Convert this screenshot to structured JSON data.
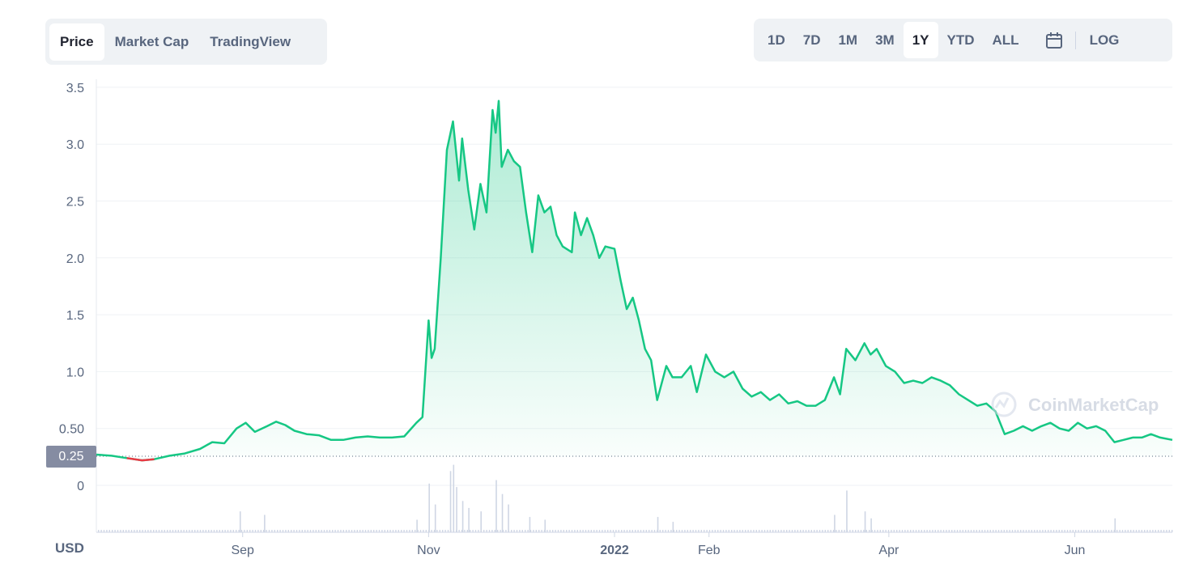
{
  "tabs": [
    "Price",
    "Market Cap",
    "TradingView"
  ],
  "ranges": [
    "1D",
    "7D",
    "1M",
    "3M",
    "1Y",
    "YTD",
    "ALL"
  ],
  "log_label": "LOG",
  "currency_label": "USD",
  "watermark": "CoinMarketCap",
  "current_price_label": "0.25",
  "colors": {
    "up": "#16c784",
    "down": "#ea3943"
  },
  "chart_data": {
    "type": "area",
    "y_ticks": [
      "3.5",
      "3.0",
      "2.5",
      "2.0",
      "1.5",
      "1.0",
      "0.50",
      "0"
    ],
    "y_tick_values": [
      3.5,
      3.0,
      2.5,
      2.0,
      1.5,
      1.0,
      0.5,
      0
    ],
    "ylim": [
      0,
      3.5
    ],
    "baseline": 0.25,
    "x_ticks": [
      {
        "label": "Sep",
        "date": "2021-09-01"
      },
      {
        "label": "Nov",
        "date": "2021-11-01"
      },
      {
        "label": "2022",
        "date": "2022-01-01"
      },
      {
        "label": "Feb",
        "date": "2022-02-01"
      },
      {
        "label": "Apr",
        "date": "2022-04-01"
      },
      {
        "label": "Jun",
        "date": "2022-06-01"
      }
    ],
    "series": [
      {
        "values": [
          [
            "2021-07-15",
            0.27
          ],
          [
            "2021-07-20",
            0.26
          ],
          [
            "2021-07-25",
            0.24
          ],
          [
            "2021-07-30",
            0.22
          ],
          [
            "2021-08-03",
            0.23
          ],
          [
            "2021-08-08",
            0.26
          ],
          [
            "2021-08-13",
            0.28
          ],
          [
            "2021-08-18",
            0.32
          ],
          [
            "2021-08-22",
            0.38
          ],
          [
            "2021-08-26",
            0.37
          ],
          [
            "2021-08-30",
            0.5
          ],
          [
            "2021-09-02",
            0.55
          ],
          [
            "2021-09-05",
            0.47
          ],
          [
            "2021-09-09",
            0.52
          ],
          [
            "2021-09-12",
            0.56
          ],
          [
            "2021-09-15",
            0.53
          ],
          [
            "2021-09-18",
            0.48
          ],
          [
            "2021-09-22",
            0.45
          ],
          [
            "2021-09-26",
            0.44
          ],
          [
            "2021-09-30",
            0.4
          ],
          [
            "2021-10-04",
            0.4
          ],
          [
            "2021-10-08",
            0.42
          ],
          [
            "2021-10-12",
            0.43
          ],
          [
            "2021-10-16",
            0.42
          ],
          [
            "2021-10-20",
            0.42
          ],
          [
            "2021-10-24",
            0.43
          ],
          [
            "2021-10-28",
            0.55
          ],
          [
            "2021-10-30",
            0.6
          ],
          [
            "2021-11-01",
            1.45
          ],
          [
            "2021-11-02",
            1.12
          ],
          [
            "2021-11-03",
            1.2
          ],
          [
            "2021-11-05",
            2.0
          ],
          [
            "2021-11-07",
            2.95
          ],
          [
            "2021-11-09",
            3.2
          ],
          [
            "2021-11-11",
            2.68
          ],
          [
            "2021-11-12",
            3.05
          ],
          [
            "2021-11-14",
            2.6
          ],
          [
            "2021-11-16",
            2.25
          ],
          [
            "2021-11-18",
            2.65
          ],
          [
            "2021-11-20",
            2.4
          ],
          [
            "2021-11-22",
            3.3
          ],
          [
            "2021-11-23",
            3.1
          ],
          [
            "2021-11-24",
            3.38
          ],
          [
            "2021-11-25",
            2.8
          ],
          [
            "2021-11-27",
            2.95
          ],
          [
            "2021-11-29",
            2.85
          ],
          [
            "2021-12-01",
            2.8
          ],
          [
            "2021-12-03",
            2.4
          ],
          [
            "2021-12-05",
            2.05
          ],
          [
            "2021-12-07",
            2.55
          ],
          [
            "2021-12-09",
            2.4
          ],
          [
            "2021-12-11",
            2.45
          ],
          [
            "2021-12-13",
            2.2
          ],
          [
            "2021-12-15",
            2.1
          ],
          [
            "2021-12-18",
            2.05
          ],
          [
            "2021-12-19",
            2.4
          ],
          [
            "2021-12-21",
            2.2
          ],
          [
            "2021-12-23",
            2.35
          ],
          [
            "2021-12-25",
            2.2
          ],
          [
            "2021-12-27",
            2.0
          ],
          [
            "2021-12-29",
            2.1
          ],
          [
            "2022-01-01",
            2.08
          ],
          [
            "2022-01-03",
            1.8
          ],
          [
            "2022-01-05",
            1.55
          ],
          [
            "2022-01-07",
            1.65
          ],
          [
            "2022-01-09",
            1.45
          ],
          [
            "2022-01-11",
            1.2
          ],
          [
            "2022-01-13",
            1.1
          ],
          [
            "2022-01-15",
            0.75
          ],
          [
            "2022-01-18",
            1.05
          ],
          [
            "2022-01-20",
            0.95
          ],
          [
            "2022-01-23",
            0.95
          ],
          [
            "2022-01-26",
            1.05
          ],
          [
            "2022-01-28",
            0.82
          ],
          [
            "2022-01-31",
            1.15
          ],
          [
            "2022-02-03",
            1.0
          ],
          [
            "2022-02-06",
            0.95
          ],
          [
            "2022-02-09",
            1.0
          ],
          [
            "2022-02-12",
            0.85
          ],
          [
            "2022-02-15",
            0.78
          ],
          [
            "2022-02-18",
            0.82
          ],
          [
            "2022-02-21",
            0.75
          ],
          [
            "2022-02-24",
            0.8
          ],
          [
            "2022-02-27",
            0.72
          ],
          [
            "2022-03-02",
            0.74
          ],
          [
            "2022-03-05",
            0.7
          ],
          [
            "2022-03-08",
            0.7
          ],
          [
            "2022-03-11",
            0.75
          ],
          [
            "2022-03-14",
            0.95
          ],
          [
            "2022-03-16",
            0.8
          ],
          [
            "2022-03-18",
            1.2
          ],
          [
            "2022-03-21",
            1.1
          ],
          [
            "2022-03-24",
            1.25
          ],
          [
            "2022-03-26",
            1.15
          ],
          [
            "2022-03-28",
            1.2
          ],
          [
            "2022-03-31",
            1.05
          ],
          [
            "2022-04-03",
            1.0
          ],
          [
            "2022-04-06",
            0.9
          ],
          [
            "2022-04-09",
            0.92
          ],
          [
            "2022-04-12",
            0.9
          ],
          [
            "2022-04-15",
            0.95
          ],
          [
            "2022-04-18",
            0.92
          ],
          [
            "2022-04-21",
            0.88
          ],
          [
            "2022-04-24",
            0.8
          ],
          [
            "2022-04-27",
            0.75
          ],
          [
            "2022-04-30",
            0.7
          ],
          [
            "2022-05-03",
            0.72
          ],
          [
            "2022-05-06",
            0.65
          ],
          [
            "2022-05-09",
            0.45
          ],
          [
            "2022-05-12",
            0.48
          ],
          [
            "2022-05-15",
            0.52
          ],
          [
            "2022-05-18",
            0.48
          ],
          [
            "2022-05-21",
            0.52
          ],
          [
            "2022-05-24",
            0.55
          ],
          [
            "2022-05-27",
            0.5
          ],
          [
            "2022-05-30",
            0.48
          ],
          [
            "2022-06-02",
            0.55
          ],
          [
            "2022-06-05",
            0.5
          ],
          [
            "2022-06-08",
            0.52
          ],
          [
            "2022-06-11",
            0.48
          ],
          [
            "2022-06-14",
            0.38
          ],
          [
            "2022-06-17",
            0.4
          ],
          [
            "2022-06-20",
            0.42
          ],
          [
            "2022-06-23",
            0.42
          ],
          [
            "2022-06-26",
            0.45
          ],
          [
            "2022-06-29",
            0.42
          ],
          [
            "2022-07-03",
            0.4
          ]
        ]
      }
    ],
    "volume": [
      [
        "2021-08-31",
        0.3
      ],
      [
        "2021-09-08",
        0.25
      ],
      [
        "2021-10-28",
        0.18
      ],
      [
        "2021-11-01",
        0.7
      ],
      [
        "2021-11-03",
        0.4
      ],
      [
        "2021-11-08",
        0.88
      ],
      [
        "2021-11-09",
        0.97
      ],
      [
        "2021-11-10",
        0.65
      ],
      [
        "2021-11-12",
        0.45
      ],
      [
        "2021-11-14",
        0.35
      ],
      [
        "2021-11-18",
        0.3
      ],
      [
        "2021-11-23",
        0.75
      ],
      [
        "2021-11-25",
        0.55
      ],
      [
        "2021-11-27",
        0.4
      ],
      [
        "2021-12-04",
        0.22
      ],
      [
        "2021-12-09",
        0.18
      ],
      [
        "2022-01-15",
        0.22
      ],
      [
        "2022-01-20",
        0.15
      ],
      [
        "2022-03-14",
        0.25
      ],
      [
        "2022-03-18",
        0.6
      ],
      [
        "2022-03-24",
        0.3
      ],
      [
        "2022-03-26",
        0.2
      ],
      [
        "2022-06-14",
        0.2
      ]
    ],
    "volume_max": 1.0
  }
}
